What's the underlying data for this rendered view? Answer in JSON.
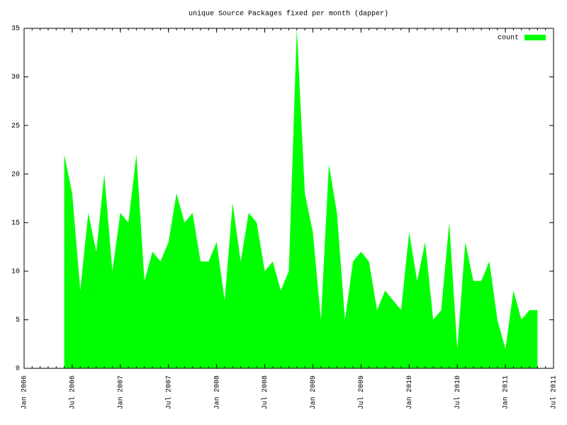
{
  "chart_data": {
    "type": "area",
    "title": "unique Source Packages fixed per month (dapper)",
    "x": [
      "2006-06",
      "2006-07",
      "2006-08",
      "2006-09",
      "2006-10",
      "2006-11",
      "2006-12",
      "2007-01",
      "2007-02",
      "2007-03",
      "2007-04",
      "2007-05",
      "2007-06",
      "2007-07",
      "2007-08",
      "2007-09",
      "2007-10",
      "2007-11",
      "2007-12",
      "2008-01",
      "2008-02",
      "2008-03",
      "2008-04",
      "2008-05",
      "2008-06",
      "2008-07",
      "2008-08",
      "2008-09",
      "2008-10",
      "2008-11",
      "2008-12",
      "2009-01",
      "2009-02",
      "2009-03",
      "2009-04",
      "2009-05",
      "2009-06",
      "2009-07",
      "2009-08",
      "2009-09",
      "2009-10",
      "2009-11",
      "2009-12",
      "2010-01",
      "2010-02",
      "2010-03",
      "2010-04",
      "2010-05",
      "2010-06",
      "2010-07",
      "2010-08",
      "2010-09",
      "2010-10",
      "2010-11",
      "2010-12",
      "2011-01",
      "2011-02",
      "2011-03",
      "2011-04",
      "2011-05"
    ],
    "series": [
      {
        "name": "count",
        "color": "#00ff00",
        "values": [
          22,
          18,
          8,
          16,
          12,
          20,
          10,
          16,
          15,
          22,
          9,
          12,
          11,
          13,
          18,
          15,
          16,
          11,
          11,
          13,
          7,
          17,
          11,
          16,
          15,
          10,
          11,
          8,
          10,
          35,
          18,
          14,
          5,
          21,
          16,
          5,
          11,
          12,
          11,
          6,
          8,
          7,
          6,
          14,
          9,
          13,
          5,
          6,
          15,
          2,
          13,
          9,
          9,
          11,
          5,
          2,
          8,
          5,
          6,
          6
        ]
      }
    ],
    "xlim": [
      "2006-01",
      "2011-07"
    ],
    "xticks": [
      {
        "value": "2006-01",
        "label": "Jan 2006"
      },
      {
        "value": "2006-07",
        "label": "Jul 2006"
      },
      {
        "value": "2007-01",
        "label": "Jan 2007"
      },
      {
        "value": "2007-07",
        "label": "Jul 2007"
      },
      {
        "value": "2008-01",
        "label": "Jan 2008"
      },
      {
        "value": "2008-07",
        "label": "Jul 2008"
      },
      {
        "value": "2009-01",
        "label": "Jan 2009"
      },
      {
        "value": "2009-07",
        "label": "Jul 2009"
      },
      {
        "value": "2010-01",
        "label": "Jan 2010"
      },
      {
        "value": "2010-07",
        "label": "Jul 2010"
      },
      {
        "value": "2011-01",
        "label": "Jan 2011"
      },
      {
        "value": "2011-07",
        "label": "Jul 2011"
      }
    ],
    "xminor": 6,
    "ylim": [
      0,
      35
    ],
    "yticks": [
      0,
      5,
      10,
      15,
      20,
      25,
      30,
      35
    ],
    "legend": "top-right"
  }
}
